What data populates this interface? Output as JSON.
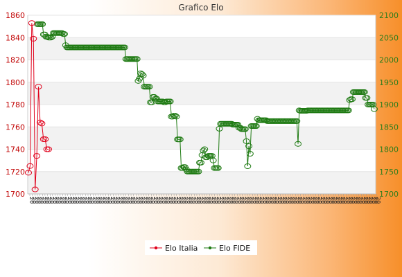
{
  "chart_data": {
    "type": "line",
    "title": "Grafico Elo",
    "ylim_left": [
      1700,
      1860
    ],
    "ylim_right": [
      1700,
      2100
    ],
    "yticks_left": [
      "1700",
      "1720",
      "1740",
      "1760",
      "1780",
      "1800",
      "1820",
      "1840",
      "1860"
    ],
    "yticks_right": [
      "1700",
      "1750",
      "1800",
      "1850",
      "1900",
      "1950",
      "2000",
      "2050",
      "2100"
    ],
    "grid": "horizontal bands",
    "legend_position": "bottom-center",
    "series": [
      {
        "name": "Elo Italia",
        "axis": "left",
        "color": "#e0001b",
        "values": [
          1719,
          1725,
          1853,
          1839,
          1704,
          1734,
          1796,
          1764,
          1763,
          1749,
          1749,
          1740,
          1740
        ]
      },
      {
        "name": "Elo FIDE",
        "axis": "right",
        "color": "#1e7a12",
        "values": [
          2080,
          2080,
          2080,
          2080,
          2080,
          2057,
          2057,
          2052,
          2052,
          2050,
          2050,
          2050,
          2052,
          2060,
          2060,
          2060,
          2060,
          2060,
          2060,
          2060,
          2060,
          2058,
          2058,
          2033,
          2028,
          2028,
          2028,
          2028,
          2028,
          2028,
          2028,
          2028,
          2028,
          2028,
          2028,
          2028,
          2028,
          2028,
          2028,
          2028,
          2028,
          2028,
          2028,
          2028,
          2028,
          2028,
          2028,
          2028,
          2028,
          2028,
          2028,
          2028,
          2028,
          2028,
          2028,
          2028,
          2028,
          2028,
          2028,
          2028,
          2028,
          2028,
          2028,
          2028,
          2028,
          2028,
          2028,
          2028,
          2028,
          2028,
          2028,
          2028,
          2002,
          2002,
          2002,
          2002,
          2002,
          2002,
          2002,
          2002,
          2002,
          2002,
          1953,
          1958,
          1970,
          1968,
          1965,
          1940,
          1940,
          1940,
          1940,
          1940,
          1905,
          1905,
          1917,
          1917,
          1913,
          1913,
          1907,
          1907,
          1907,
          1907,
          1907,
          1905,
          1905,
          1907,
          1907,
          1907,
          1907,
          1873,
          1873,
          1875,
          1875,
          1873,
          1822,
          1822,
          1822,
          1758,
          1758,
          1760,
          1760,
          1755,
          1750,
          1750,
          1750,
          1750,
          1750,
          1750,
          1750,
          1750,
          1750,
          1750,
          1770,
          1770,
          1787,
          1797,
          1800,
          1782,
          1782,
          1785,
          1785,
          1785,
          1785,
          1775,
          1758,
          1758,
          1758,
          1758,
          1846,
          1857,
          1857,
          1857,
          1857,
          1857,
          1857,
          1857,
          1857,
          1857,
          1857,
          1855,
          1855,
          1855,
          1855,
          1855,
          1848,
          1848,
          1845,
          1845,
          1845,
          1845,
          1818,
          1762,
          1807,
          1790,
          1852,
          1852,
          1852,
          1852,
          1852,
          1868,
          1865,
          1865,
          1865,
          1865,
          1865,
          1865,
          1865,
          1863,
          1863,
          1863,
          1863,
          1863,
          1863,
          1863,
          1863,
          1863,
          1863,
          1863,
          1863,
          1863,
          1863,
          1863,
          1863,
          1863,
          1863,
          1863,
          1863,
          1863,
          1863,
          1863,
          1863,
          1863,
          1812,
          1887,
          1886,
          1886,
          1886,
          1886,
          1886,
          1886,
          1887,
          1887,
          1887,
          1887,
          1887,
          1887,
          1887,
          1887,
          1887,
          1887,
          1887,
          1887,
          1887,
          1887,
          1887,
          1887,
          1887,
          1887,
          1887,
          1887,
          1887,
          1887,
          1887,
          1887,
          1887,
          1887,
          1887,
          1887,
          1887,
          1887,
          1887,
          1887,
          1887,
          1887,
          1910,
          1912,
          1912,
          1928,
          1928,
          1928,
          1928,
          1928,
          1928,
          1928,
          1928,
          1928,
          1928,
          1915,
          1915,
          1900,
          1900,
          1900,
          1900,
          1900,
          1890
        ]
      }
    ]
  }
}
